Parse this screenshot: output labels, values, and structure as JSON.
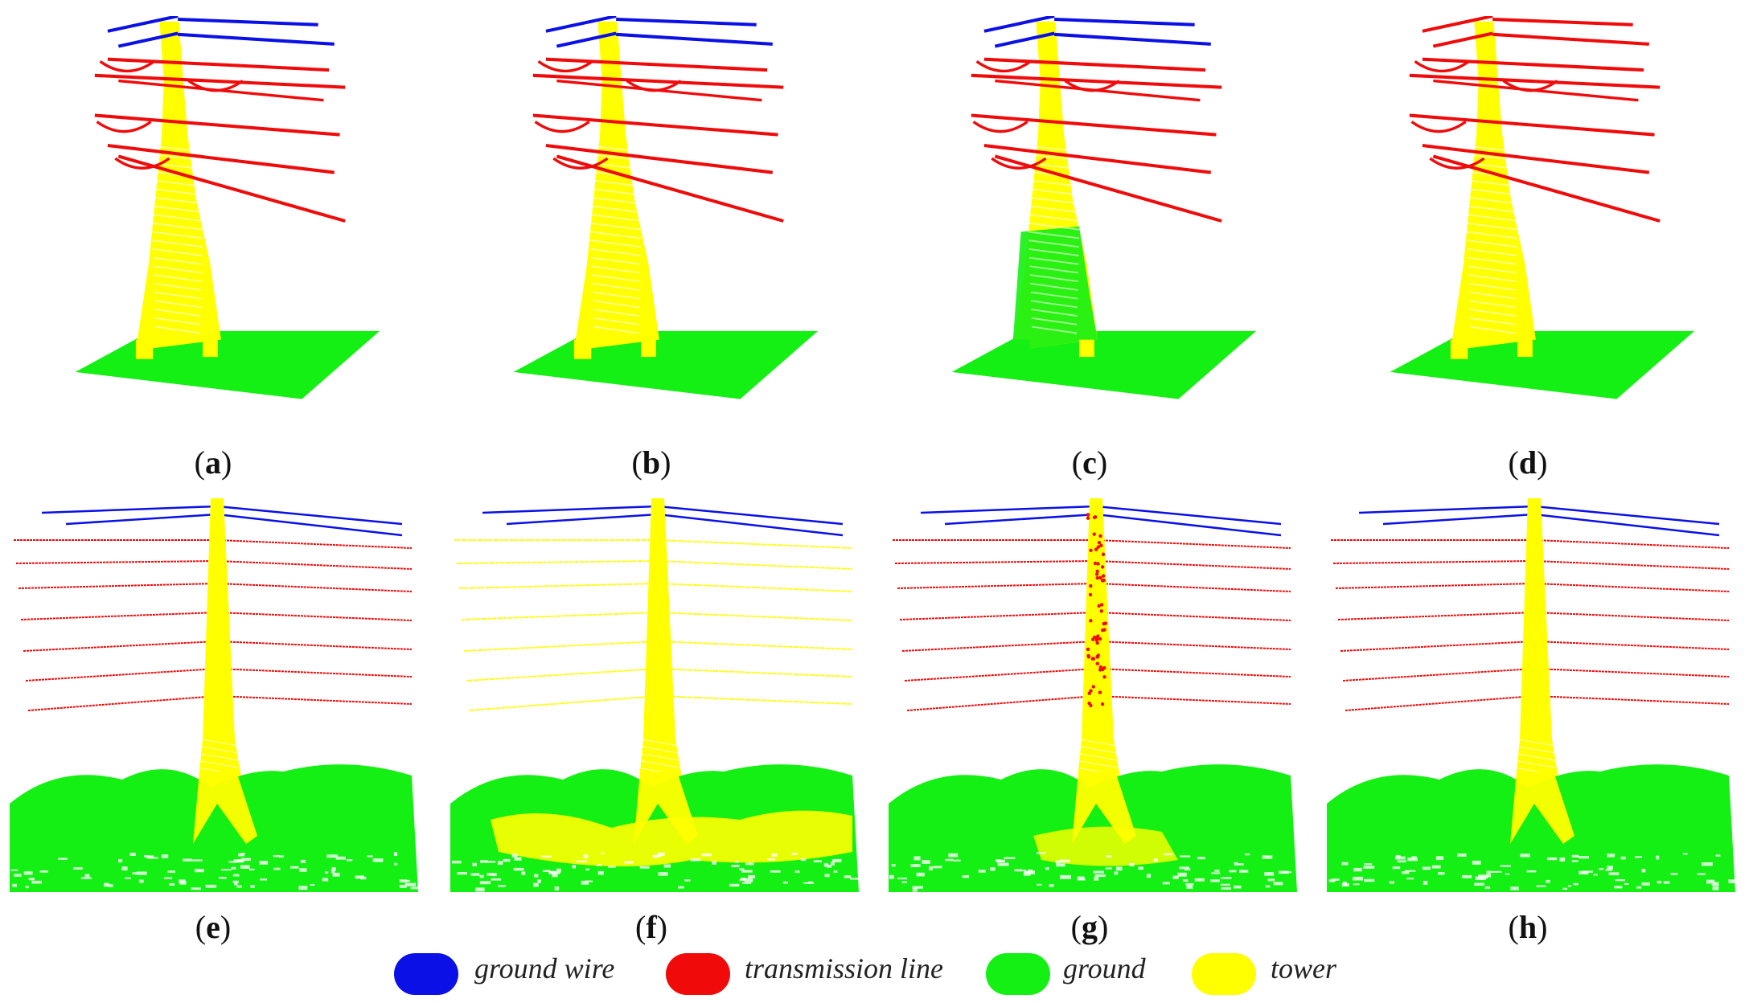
{
  "panels": [
    {
      "id": "a",
      "caption": "a",
      "scene": "tower-top",
      "variant": "clean"
    },
    {
      "id": "b",
      "caption": "b",
      "scene": "tower-top",
      "variant": "clean-b"
    },
    {
      "id": "c",
      "caption": "c",
      "scene": "tower-top",
      "variant": "green-base"
    },
    {
      "id": "d",
      "caption": "d",
      "scene": "tower-top",
      "variant": "red-lines"
    },
    {
      "id": "e",
      "caption": "e",
      "scene": "tower-lines",
      "variant": "clean"
    },
    {
      "id": "f",
      "caption": "f",
      "scene": "tower-lines",
      "variant": "yellow-lines"
    },
    {
      "id": "g",
      "caption": "g",
      "scene": "tower-lines",
      "variant": "red-tower"
    },
    {
      "id": "h",
      "caption": "h",
      "scene": "tower-lines",
      "variant": "clean-h"
    }
  ],
  "legend": [
    {
      "label": "ground wire",
      "color": "#0a10e6"
    },
    {
      "label": "transmission line",
      "color": "#f00a0a"
    },
    {
      "label": "ground",
      "color": "#14ef14"
    },
    {
      "label": "tower",
      "color": "#ffff00"
    }
  ],
  "colors": {
    "ground_wire": "#0a10e6",
    "transmission_line": "#f00a0a",
    "ground": "#14ef14",
    "tower": "#ffff00"
  }
}
